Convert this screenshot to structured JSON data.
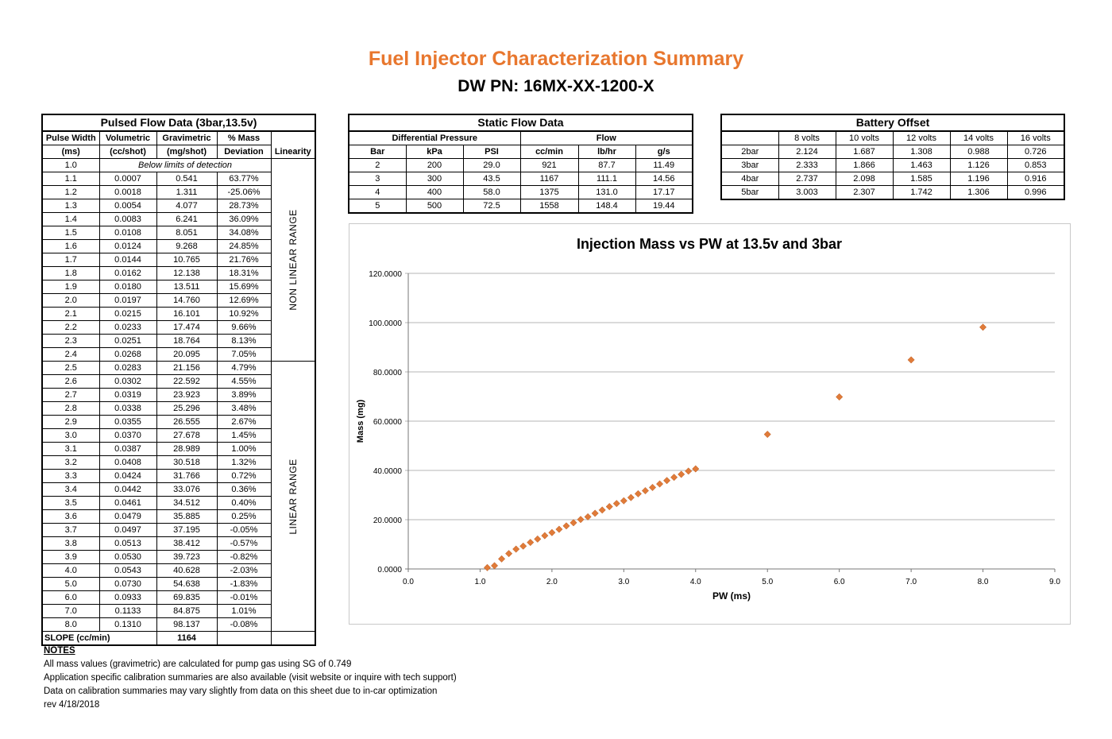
{
  "title": "Fuel Injector Characterization Summary",
  "subtitle": "DW PN: 16MX-XX-1200-X",
  "pulsed": {
    "caption": "Pulsed Flow Data (3bar,13.5v)",
    "headers": [
      [
        "Pulse Width",
        "(ms)"
      ],
      [
        "Volumetric",
        "(cc/shot)"
      ],
      [
        "Gravimetric",
        "(mg/shot)"
      ],
      [
        "% Mass",
        "Deviation"
      ],
      [
        "Linearity"
      ]
    ],
    "first_row": {
      "pw": "1.0",
      "note": "Below limits of detection"
    },
    "rows": [
      [
        "1.1",
        "0.0007",
        "0.541",
        "63.77%"
      ],
      [
        "1.2",
        "0.0018",
        "1.311",
        "-25.06%"
      ],
      [
        "1.3",
        "0.0054",
        "4.077",
        "28.73%"
      ],
      [
        "1.4",
        "0.0083",
        "6.241",
        "36.09%"
      ],
      [
        "1.5",
        "0.0108",
        "8.051",
        "34.08%"
      ],
      [
        "1.6",
        "0.0124",
        "9.268",
        "24.85%"
      ],
      [
        "1.7",
        "0.0144",
        "10.765",
        "21.76%"
      ],
      [
        "1.8",
        "0.0162",
        "12.138",
        "18.31%"
      ],
      [
        "1.9",
        "0.0180",
        "13.511",
        "15.69%"
      ],
      [
        "2.0",
        "0.0197",
        "14.760",
        "12.69%"
      ],
      [
        "2.1",
        "0.0215",
        "16.101",
        "10.92%"
      ],
      [
        "2.2",
        "0.0233",
        "17.474",
        "9.66%"
      ],
      [
        "2.3",
        "0.0251",
        "18.764",
        "8.13%"
      ],
      [
        "2.4",
        "0.0268",
        "20.095",
        "7.05%"
      ],
      [
        "2.5",
        "0.0283",
        "21.156",
        "4.79%"
      ],
      [
        "2.6",
        "0.0302",
        "22.592",
        "4.55%"
      ],
      [
        "2.7",
        "0.0319",
        "23.923",
        "3.89%"
      ],
      [
        "2.8",
        "0.0338",
        "25.296",
        "3.48%"
      ],
      [
        "2.9",
        "0.0355",
        "26.555",
        "2.67%"
      ],
      [
        "3.0",
        "0.0370",
        "27.678",
        "1.45%"
      ],
      [
        "3.1",
        "0.0387",
        "28.989",
        "1.00%"
      ],
      [
        "3.2",
        "0.0408",
        "30.518",
        "1.32%"
      ],
      [
        "3.3",
        "0.0424",
        "31.766",
        "0.72%"
      ],
      [
        "3.4",
        "0.0442",
        "33.076",
        "0.36%"
      ],
      [
        "3.5",
        "0.0461",
        "34.512",
        "0.40%"
      ],
      [
        "3.6",
        "0.0479",
        "35.885",
        "0.25%"
      ],
      [
        "3.7",
        "0.0497",
        "37.195",
        "-0.05%"
      ],
      [
        "3.8",
        "0.0513",
        "38.412",
        "-0.57%"
      ],
      [
        "3.9",
        "0.0530",
        "39.723",
        "-0.82%"
      ],
      [
        "4.0",
        "0.0543",
        "40.628",
        "-2.03%"
      ],
      [
        "5.0",
        "0.0730",
        "54.638",
        "-1.83%"
      ],
      [
        "6.0",
        "0.0933",
        "69.835",
        "-0.01%"
      ],
      [
        "7.0",
        "0.1133",
        "84.875",
        "1.01%"
      ],
      [
        "8.0",
        "0.1310",
        "98.137",
        "-0.08%"
      ]
    ],
    "nonlinear_label": "NON LINEAR RANGE",
    "linear_label": "LINEAR RANGE",
    "slope_label": "SLOPE (cc/min)",
    "slope_value": "1164"
  },
  "static": {
    "caption": "Static Flow Data",
    "group_pressure": "Differential Pressure",
    "group_flow": "Flow",
    "headers": [
      "Bar",
      "kPa",
      "PSI",
      "cc/min",
      "lb/hr",
      "g/s"
    ],
    "rows": [
      [
        "2",
        "200",
        "29.0",
        "921",
        "87.7",
        "11.49"
      ],
      [
        "3",
        "300",
        "43.5",
        "1167",
        "111.1",
        "14.56"
      ],
      [
        "4",
        "400",
        "58.0",
        "1375",
        "131.0",
        "17.17"
      ],
      [
        "5",
        "500",
        "72.5",
        "1558",
        "148.4",
        "19.44"
      ]
    ]
  },
  "battery": {
    "caption": "Battery Offset",
    "headers": [
      "",
      "8 volts",
      "10 volts",
      "12 volts",
      "14 volts",
      "16 volts"
    ],
    "rows": [
      [
        "2bar",
        "2.124",
        "1.687",
        "1.308",
        "0.988",
        "0.726"
      ],
      [
        "3bar",
        "2.333",
        "1.866",
        "1.463",
        "1.126",
        "0.853"
      ],
      [
        "4bar",
        "2.737",
        "2.098",
        "1.585",
        "1.196",
        "0.916"
      ],
      [
        "5bar",
        "3.003",
        "2.307",
        "1.742",
        "1.306",
        "0.996"
      ]
    ]
  },
  "chart_data": {
    "type": "scatter",
    "title": "Injection Mass vs PW at 13.5v and 3bar",
    "xlabel": "PW (ms)",
    "ylabel": "Mass (mg)",
    "xlim": [
      0,
      9
    ],
    "ylim": [
      0,
      120
    ],
    "xticks": [
      "0.0",
      "1.0",
      "2.0",
      "3.0",
      "4.0",
      "5.0",
      "6.0",
      "7.0",
      "8.0",
      "9.0"
    ],
    "yticks": [
      "0.0000",
      "20.0000",
      "40.0000",
      "60.0000",
      "80.0000",
      "100.0000",
      "120.0000"
    ],
    "grid": "horizontal",
    "marker_color": "#e07b39",
    "x": [
      1.1,
      1.2,
      1.3,
      1.4,
      1.5,
      1.6,
      1.7,
      1.8,
      1.9,
      2.0,
      2.1,
      2.2,
      2.3,
      2.4,
      2.5,
      2.6,
      2.7,
      2.8,
      2.9,
      3.0,
      3.1,
      3.2,
      3.3,
      3.4,
      3.5,
      3.6,
      3.7,
      3.8,
      3.9,
      4.0,
      5.0,
      6.0,
      7.0,
      8.0
    ],
    "y": [
      0.541,
      1.311,
      4.077,
      6.241,
      8.051,
      9.268,
      10.765,
      12.138,
      13.511,
      14.76,
      16.101,
      17.474,
      18.764,
      20.095,
      21.156,
      22.592,
      23.923,
      25.296,
      26.555,
      27.678,
      28.989,
      30.518,
      31.766,
      33.076,
      34.512,
      35.885,
      37.195,
      38.412,
      39.723,
      40.628,
      54.638,
      69.835,
      84.875,
      98.137
    ]
  },
  "notes": {
    "heading": "NOTES",
    "lines": [
      "All mass values (gravimetric) are calculated for pump gas using SG of 0.749",
      "Application specific calibration summaries are also available (visit website or inquire with tech support)",
      "Data on calibration summaries may vary slightly from data on this sheet due to in-car optimization",
      "rev 4/18/2018"
    ]
  }
}
